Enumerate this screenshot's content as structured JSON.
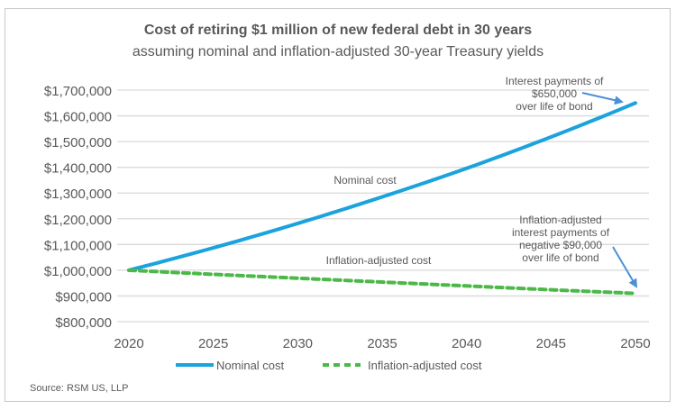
{
  "chart_data": {
    "type": "line",
    "title": "Cost of retiring $1 million of new federal debt in 30 years",
    "subtitle": "assuming nominal and inflation-adjusted 30-year Treasury yields",
    "x": [
      2020,
      2025,
      2030,
      2035,
      2040,
      2045,
      2050
    ],
    "xticks": [
      "2020",
      "2025",
      "2030",
      "2035",
      "2040",
      "2045",
      "2050"
    ],
    "xlim": [
      2020,
      2050
    ],
    "ylim": [
      800000,
      1700000
    ],
    "yticks": [
      "$800,000",
      "$900,000",
      "$1,000,000",
      "$1,100,000",
      "$1,200,000",
      "$1,300,000",
      "$1,400,000",
      "$1,500,000",
      "$1,600,000",
      "$1,700,000"
    ],
    "grid": true,
    "legend_placement": "bottom",
    "series": [
      {
        "name": "Nominal cost",
        "color": "#1aa3dd",
        "style": "solid",
        "values": [
          1000000,
          1087000,
          1182000,
          1285000,
          1396000,
          1518000,
          1650000
        ]
      },
      {
        "name": "Inflation-adjusted cost",
        "color": "#4cb848",
        "style": "dashed",
        "values": [
          1000000,
          984000,
          969000,
          954000,
          939000,
          924000,
          910000
        ]
      }
    ],
    "annotations": [
      {
        "lines": [
          "Interest payments of",
          "$650,000",
          "over life of bond"
        ],
        "points_to": [
          2050,
          1650000
        ]
      },
      {
        "lines": [
          "Inflation-adjusted",
          "interest payments of",
          "negative $90,000",
          "over life of bond"
        ],
        "points_to": [
          2050,
          910000
        ]
      }
    ],
    "series_labels": [
      "Nominal cost",
      "Inflation-adjusted cost"
    ],
    "arrow_color": "#4a90d9",
    "source": "Source: RSM US, LLP"
  }
}
